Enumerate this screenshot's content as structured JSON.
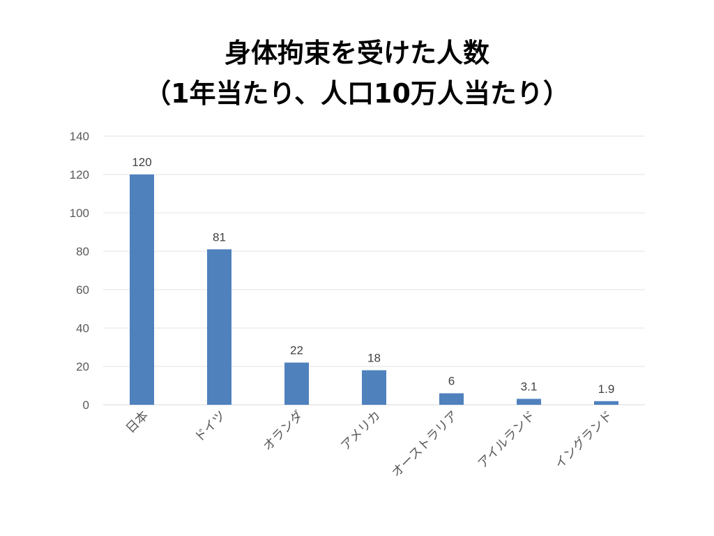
{
  "chart_data": {
    "type": "bar",
    "title": "身体拘束を受けた人数",
    "subtitle": "（1年当たり、人口10万人当たり）",
    "categories": [
      "日本",
      "ドイツ",
      "オランダ",
      "アメリカ",
      "オーストラリア",
      "アイルランド",
      "イングランド"
    ],
    "values": [
      120,
      81,
      22,
      18,
      6,
      3.1,
      1.9
    ],
    "data_labels": [
      "120",
      "81",
      "22",
      "18",
      "6",
      "3.1",
      "1.9"
    ],
    "ylim": [
      0,
      140
    ],
    "yticks": [
      "0",
      "20",
      "40",
      "60",
      "80",
      "100",
      "120",
      "140"
    ],
    "xlabel": "",
    "ylabel": "",
    "grid": true,
    "legend": "none",
    "bar_color": "#4F81BD"
  }
}
